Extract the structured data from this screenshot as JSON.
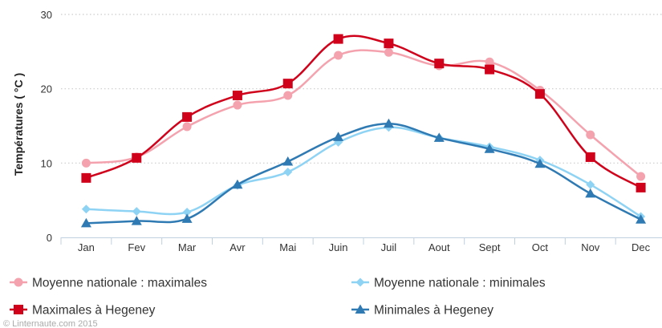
{
  "chart_data": {
    "type": "line",
    "ylabel": "Températures ( °C )",
    "ylim": [
      0,
      30
    ],
    "yticks": [
      0,
      10,
      20,
      30
    ],
    "grid": true,
    "legend_position": "bottom",
    "categories": [
      "Jan",
      "Fev",
      "Mar",
      "Avr",
      "Mai",
      "Juin",
      "Juil",
      "Aout",
      "Sept",
      "Oct",
      "Nov",
      "Dec"
    ],
    "series": [
      {
        "name": "Moyenne nationale : maximales",
        "marker": "circle",
        "color": "#f4a3ae",
        "values": [
          10.0,
          10.8,
          14.9,
          17.8,
          19.1,
          24.5,
          24.9,
          23.1,
          23.6,
          19.8,
          13.8,
          8.2
        ]
      },
      {
        "name": "Maximales à Hegeney",
        "marker": "square",
        "color": "#d0021b",
        "values": [
          8.0,
          10.7,
          16.2,
          19.1,
          20.7,
          26.7,
          26.1,
          23.4,
          22.6,
          19.3,
          10.8,
          6.7
        ]
      },
      {
        "name": "Moyenne nationale : minimales",
        "marker": "diamond",
        "color": "#8fd3f4",
        "values": [
          3.8,
          3.5,
          3.4,
          7.0,
          8.8,
          12.8,
          14.8,
          13.4,
          12.2,
          10.4,
          7.1,
          2.8
        ]
      },
      {
        "name": "Minimales à Hegeney",
        "marker": "triangle",
        "color": "#2f7ab3",
        "values": [
          1.9,
          2.2,
          2.5,
          7.1,
          10.2,
          13.5,
          15.3,
          13.4,
          11.9,
          9.9,
          5.9,
          2.4
        ]
      }
    ],
    "credit": "© Linternaute.com 2015"
  }
}
